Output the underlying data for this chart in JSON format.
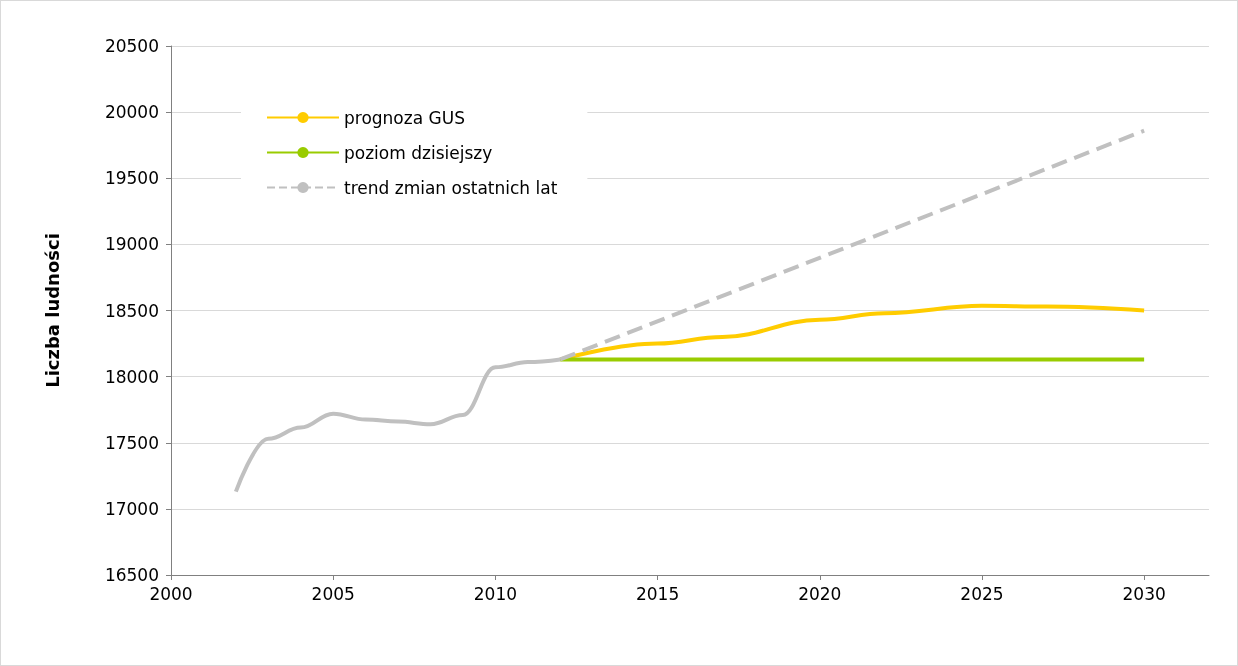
{
  "chart_data": {
    "type": "line",
    "ylabel": "Liczba ludności",
    "xlim": [
      2000,
      2032
    ],
    "xticks": [
      2000,
      2005,
      2010,
      2015,
      2020,
      2025,
      2030
    ],
    "ylim": [
      16500,
      20500
    ],
    "yticks": [
      16500,
      17000,
      17500,
      18000,
      18500,
      19000,
      19500,
      20000,
      20500
    ],
    "grid": "y",
    "legend": "top left",
    "marker": "none",
    "series": [
      {
        "name": "prognoza GUS",
        "color": "#ffcc00",
        "line_style": "solid",
        "x": [
          2012,
          2015,
          2017,
          2020,
          2022,
          2025,
          2027,
          2030
        ],
        "values": [
          18130,
          18250,
          18300,
          18430,
          18480,
          18535,
          18530,
          18500
        ]
      },
      {
        "name": "poziom dzisiejszy",
        "color": "#99cc00",
        "line_style": "solid",
        "x": [
          2012,
          2030
        ],
        "values": [
          18130,
          18130
        ]
      },
      {
        "name": "trend zmian ostatnich lat",
        "color": "#c0c0c0",
        "line_style": "dashed",
        "x": [
          2012,
          2030
        ],
        "values": [
          18130,
          19860
        ]
      },
      {
        "color": "#c0c0c0",
        "line_style": "solid",
        "x": [
          2002,
          2003,
          2004,
          2005,
          2006,
          2007,
          2008,
          2009,
          2010,
          2011,
          2012
        ],
        "values": [
          17130,
          17530,
          17615,
          17720,
          17675,
          17660,
          17640,
          17710,
          18070,
          18110,
          18130
        ]
      }
    ]
  }
}
